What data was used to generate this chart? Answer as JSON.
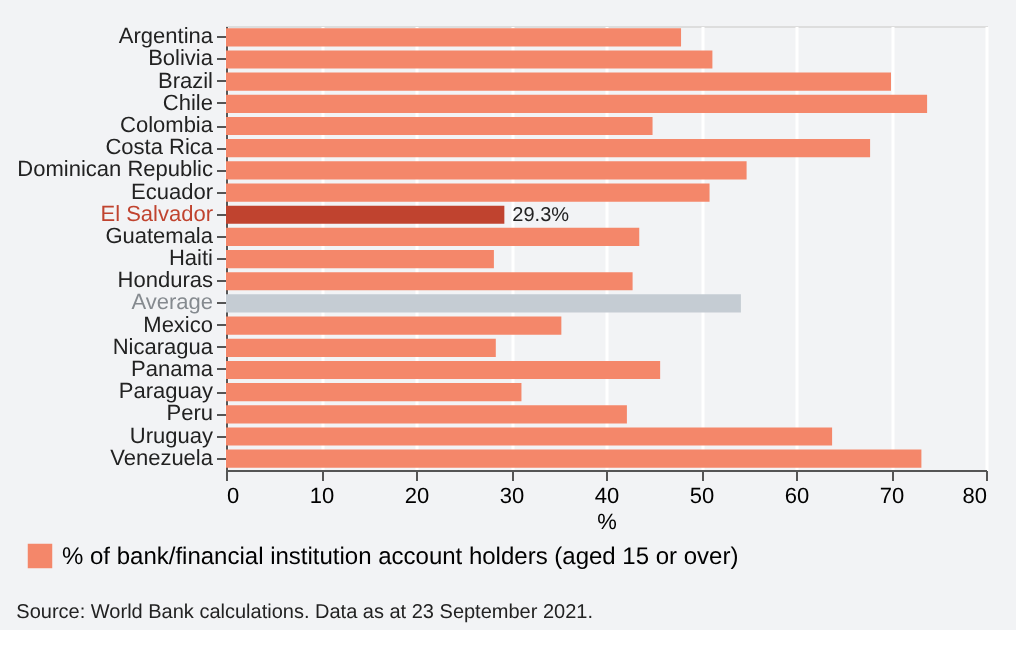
{
  "chart_data": {
    "type": "bar",
    "orientation": "horizontal",
    "xlabel": "%",
    "categories": [
      "Argentina",
      "Bolivia",
      "Brazil",
      "Chile",
      "Colombia",
      "Costa Rica",
      "Dominican Republic",
      "Ecuador",
      "El Salvador",
      "Guatemala",
      "Haiti",
      "Honduras",
      "Average",
      "Mexico",
      "Nicaragua",
      "Panama",
      "Paraguay",
      "Peru",
      "Uruguay",
      "Venezuela"
    ],
    "series": [
      {
        "name": "% of bank/financial institution account holders (aged 15 or over)",
        "color": "#f4876a",
        "values": [
          47.9,
          51.2,
          70.0,
          73.8,
          44.9,
          67.8,
          54.8,
          50.9,
          29.3,
          43.5,
          28.2,
          42.8,
          54.2,
          35.3,
          28.4,
          45.7,
          31.1,
          42.2,
          63.8,
          73.2
        ],
        "colors": [
          "#f4876a",
          "#f4876a",
          "#f4876a",
          "#f4876a",
          "#f4876a",
          "#f4876a",
          "#f4876a",
          "#f4876a",
          "#c0432f",
          "#f4876a",
          "#f4876a",
          "#f4876a",
          "#c5ccd3",
          "#f4876a",
          "#f4876a",
          "#f4876a",
          "#f4876a",
          "#f4876a",
          "#f4876a",
          "#f4876a"
        ],
        "value_labels": [
          null,
          null,
          null,
          null,
          null,
          null,
          null,
          null,
          "29.3%",
          null,
          null,
          null,
          null,
          null,
          null,
          null,
          null,
          null,
          null,
          null
        ]
      }
    ],
    "xlim": [
      0,
      80
    ],
    "xticks": [
      0,
      10,
      20,
      30,
      40,
      50,
      60,
      70,
      80
    ],
    "grid": "x",
    "legend": "bottom",
    "annotations": [
      "Source: World Bank calculations. Data as at 23 September 2021."
    ]
  }
}
